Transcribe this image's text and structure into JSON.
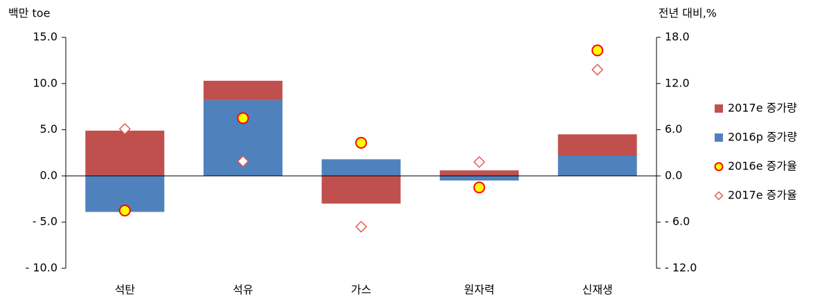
{
  "chart_data": {
    "type": "bar",
    "y_label": "백만 toe",
    "y2_label": "전년 대비,%",
    "categories": [
      "석탄",
      "석유",
      "가스",
      "원자력",
      "신재생"
    ],
    "series": [
      {
        "name": "2017e 증가량",
        "kind": "bar",
        "color": "#c0504d",
        "values": [
          4.9,
          2.1,
          -3.0,
          0.6,
          2.3
        ]
      },
      {
        "name": "2016p 증가량",
        "kind": "bar",
        "color": "#4f81bd",
        "values": [
          -3.9,
          8.2,
          1.8,
          -0.5,
          2.2
        ]
      },
      {
        "name": "2016e 증가율",
        "kind": "marker",
        "marker": "circle",
        "color": "#ff0000",
        "fill": "#ffff00",
        "axis": "y2",
        "values": [
          -4.5,
          7.5,
          4.3,
          -1.5,
          16.3
        ]
      },
      {
        "name": "2017e 증가율",
        "kind": "marker",
        "marker": "diamond",
        "color": "#e8564f",
        "fill": "#ffffff",
        "axis": "y2",
        "values": [
          6.1,
          1.9,
          -6.6,
          1.8,
          13.8
        ]
      }
    ],
    "ylim": [
      -10,
      15
    ],
    "yticks": [
      {
        "value": 15,
        "label": "15.0"
      },
      {
        "value": 10,
        "label": "10.0"
      },
      {
        "value": 5,
        "label": "5.0"
      },
      {
        "value": 0,
        "label": "0.0"
      },
      {
        "value": -5,
        "label": "- 5.0"
      },
      {
        "value": -10,
        "label": "- 10.0"
      }
    ],
    "y2lim": [
      -12,
      18
    ],
    "y2ticks": [
      {
        "value": 18,
        "label": "18.0"
      },
      {
        "value": 12,
        "label": "12.0"
      },
      {
        "value": 6,
        "label": "6.0"
      },
      {
        "value": 0,
        "label": "0.0"
      },
      {
        "value": -6,
        "label": "- 6.0"
      },
      {
        "value": -12,
        "label": "- 12.0"
      }
    ],
    "legend": "right"
  }
}
